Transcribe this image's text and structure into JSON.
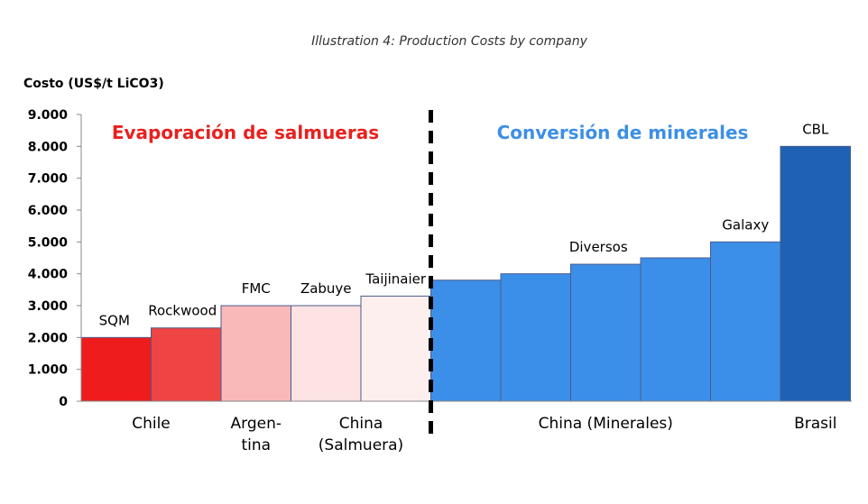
{
  "caption": "Illustration 4: Production Costs by company",
  "chart_data": {
    "type": "bar",
    "ylabel": "Costo  (US$/t LiCO3)",
    "ylim": [
      0,
      9000
    ],
    "yticks": [
      "0",
      "1.000",
      "2.000",
      "3.000",
      "4.000",
      "5.000",
      "6.000",
      "7.000",
      "8.000",
      "9.000"
    ],
    "ytick_values": [
      0,
      1000,
      2000,
      3000,
      4000,
      5000,
      6000,
      7000,
      8000,
      9000
    ],
    "grid": false,
    "bars": [
      {
        "label": "SQM",
        "value": 2000,
        "color": "#ee1c1c"
      },
      {
        "label": "Rockwood",
        "value": 2300,
        "color": "#ef4444"
      },
      {
        "label": "FMC",
        "value": 3000,
        "color": "#f9b9b9"
      },
      {
        "label": "Zabuye",
        "value": 3000,
        "color": "#fde3e3"
      },
      {
        "label": "Taijinaier",
        "value": 3300,
        "color": "#feefef"
      },
      {
        "label": "",
        "value": 3800,
        "color": "#3c8fe8"
      },
      {
        "label": "",
        "value": 4000,
        "color": "#3c8fe8"
      },
      {
        "label": "Diversos",
        "value": 4300,
        "color": "#3c8fe8"
      },
      {
        "label": "",
        "value": 4500,
        "color": "#3c8fe8"
      },
      {
        "label": "Galaxy",
        "value": 5000,
        "color": "#3c8fe8"
      },
      {
        "label": "CBL",
        "value": 8000,
        "color": "#1f62b5"
      }
    ],
    "groups": [
      {
        "lines": [
          "Chile"
        ],
        "from": 0,
        "to": 1
      },
      {
        "lines": [
          "Argen-",
          "tina"
        ],
        "from": 2,
        "to": 2
      },
      {
        "lines": [
          "China",
          "(Salmuera)"
        ],
        "from": 3,
        "to": 4
      },
      {
        "lines": [
          "China  (Minerales)"
        ],
        "from": 5,
        "to": 9
      },
      {
        "lines": [
          "Brasil"
        ],
        "from": 10,
        "to": 10
      }
    ],
    "sections": [
      {
        "text": "Evaporación de salmueras",
        "color": "#e8211f"
      },
      {
        "text": "Conversión de minerales",
        "color": "#3d8fe6"
      }
    ],
    "divider_after_bar": 4
  }
}
